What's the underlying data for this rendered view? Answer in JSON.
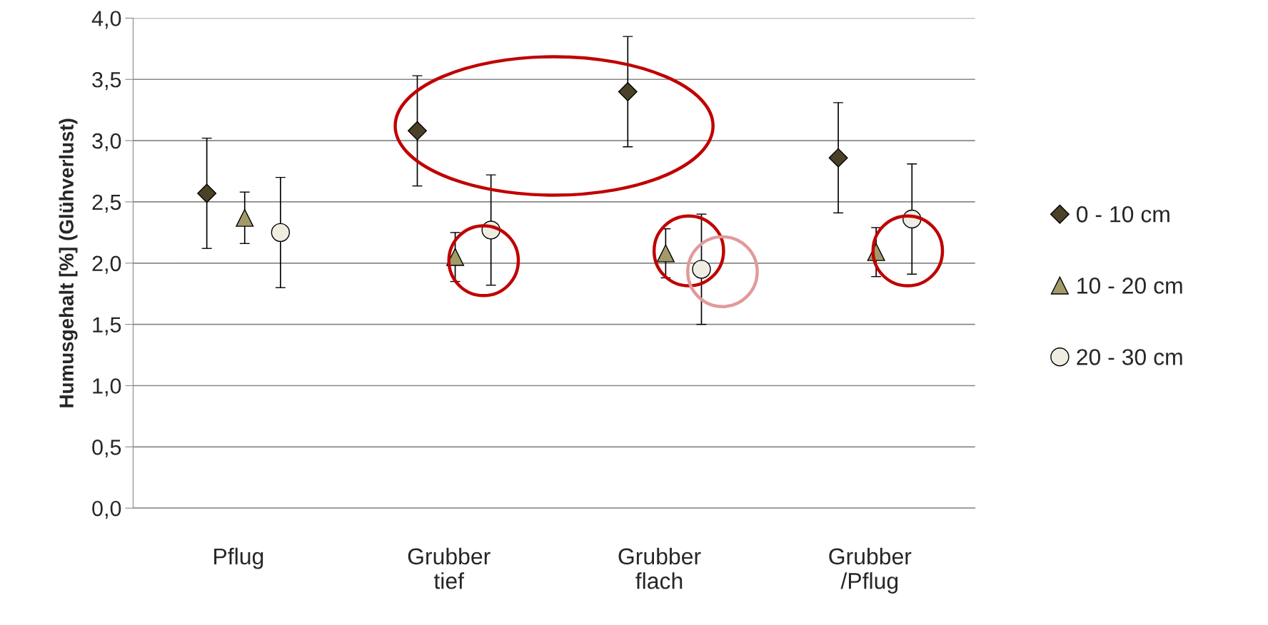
{
  "chart_data": {
    "type": "scatter",
    "ylabel": "Humusgehalt [%] (Glühverlust)",
    "categories": [
      "Pflug",
      "Grubber\ntief",
      "Grubber\nflach",
      "Grubber\n/Pflug"
    ],
    "series": [
      {
        "name": "0 - 10 cm",
        "color": "#4a4128",
        "marker": "diamond",
        "values": [
          2.57,
          3.08,
          3.4,
          2.86
        ],
        "errors": [
          0.45,
          0.45,
          0.45,
          0.45
        ]
      },
      {
        "name": "10 - 20 cm",
        "color": "#a39a6a",
        "marker": "triangle",
        "values": [
          2.37,
          2.05,
          2.08,
          2.09
        ],
        "errors": [
          0.21,
          0.2,
          0.2,
          0.2
        ]
      },
      {
        "name": "20 - 30 cm",
        "color": "#efece1",
        "marker": "circle",
        "values": [
          2.25,
          2.27,
          1.95,
          2.36
        ],
        "errors": [
          0.45,
          0.45,
          0.45,
          0.45
        ]
      }
    ],
    "ylim": [
      0,
      4
    ],
    "yticks": [
      {
        "value": 0,
        "label": "0,0"
      },
      {
        "value": 0.5,
        "label": "0,5"
      },
      {
        "value": 1,
        "label": "1,0"
      },
      {
        "value": 1.5,
        "label": "1,5"
      },
      {
        "value": 2,
        "label": "2,0"
      },
      {
        "value": 2.5,
        "label": "2,5"
      },
      {
        "value": 3,
        "label": "3,0"
      },
      {
        "value": 3.5,
        "label": "3,5"
      },
      {
        "value": 4,
        "label": "4,0"
      }
    ],
    "grid": "y",
    "legend": "right"
  }
}
